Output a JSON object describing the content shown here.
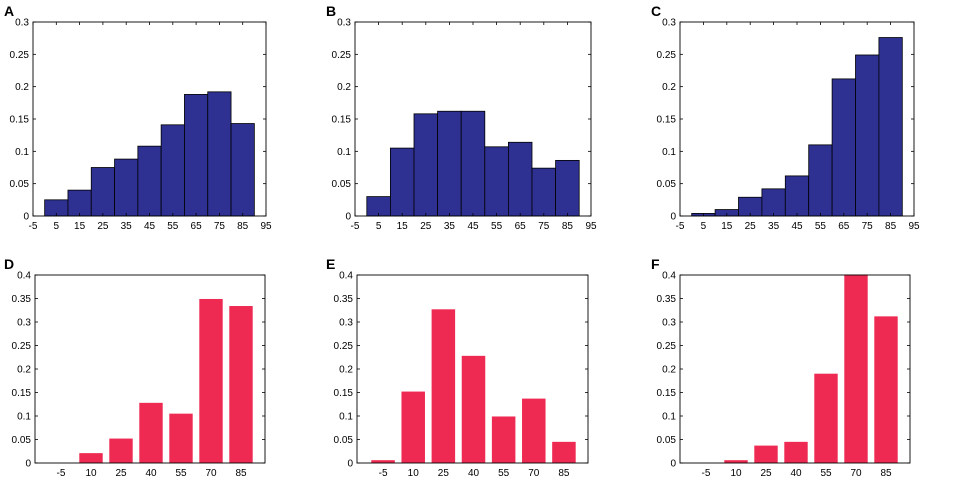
{
  "colors": {
    "histogram_fill": "#2e3192",
    "bar_fill": "#ee2a52",
    "axis": "#000000"
  },
  "chart_data": [
    {
      "panel_label": "A",
      "type": "bar",
      "layout": "histogram",
      "x_range": [
        -5,
        95
      ],
      "edges": [
        0,
        10,
        20,
        30,
        40,
        50,
        60,
        70,
        80,
        90
      ],
      "values": [
        0.025,
        0.04,
        0.075,
        0.088,
        0.108,
        0.141,
        0.188,
        0.192,
        0.143
      ],
      "xticks": [
        -5,
        5,
        15,
        25,
        35,
        45,
        55,
        65,
        75,
        85,
        95
      ],
      "ylim": [
        0,
        0.3
      ],
      "yticks": [
        "0",
        "0.05",
        "0.1",
        "0.15",
        "0.2",
        "0.25",
        "0.3"
      ],
      "color": "#2e3192",
      "title": "",
      "xlabel": "",
      "ylabel": ""
    },
    {
      "panel_label": "B",
      "type": "bar",
      "layout": "histogram",
      "x_range": [
        -5,
        95
      ],
      "edges": [
        0,
        10,
        20,
        30,
        40,
        50,
        60,
        70,
        80,
        90
      ],
      "values": [
        0.03,
        0.105,
        0.158,
        0.162,
        0.162,
        0.107,
        0.114,
        0.074,
        0.086
      ],
      "xticks": [
        -5,
        5,
        15,
        25,
        35,
        45,
        55,
        65,
        75,
        85,
        95
      ],
      "ylim": [
        0,
        0.3
      ],
      "yticks": [
        "0",
        "0.05",
        "0.1",
        "0.15",
        "0.2",
        "0.25",
        "0.3"
      ],
      "color": "#2e3192",
      "title": "",
      "xlabel": "",
      "ylabel": ""
    },
    {
      "panel_label": "C",
      "type": "bar",
      "layout": "histogram",
      "x_range": [
        -5,
        95
      ],
      "edges": [
        0,
        10,
        20,
        30,
        40,
        50,
        60,
        70,
        80,
        90
      ],
      "values": [
        0.004,
        0.01,
        0.029,
        0.042,
        0.062,
        0.11,
        0.212,
        0.249,
        0.276
      ],
      "xticks": [
        -5,
        5,
        15,
        25,
        35,
        45,
        55,
        65,
        75,
        85,
        95
      ],
      "ylim": [
        0,
        0.3
      ],
      "yticks": [
        "0",
        "0.05",
        "0.1",
        "0.15",
        "0.2",
        "0.25",
        "0.3"
      ],
      "color": "#2e3192",
      "title": "",
      "xlabel": "",
      "ylabel": ""
    },
    {
      "panel_label": "D",
      "type": "bar",
      "layout": "separated",
      "categories": [
        "-5",
        "10",
        "25",
        "40",
        "55",
        "70",
        "85"
      ],
      "values": [
        0,
        0.021,
        0.052,
        0.128,
        0.105,
        0.349,
        0.334
      ],
      "ylim": [
        0,
        0.4
      ],
      "yticks": [
        "0",
        "0.05",
        "0.1",
        "0.15",
        "0.2",
        "0.25",
        "0.3",
        "0.35",
        "0.4"
      ],
      "color": "#ee2a52",
      "title": "",
      "xlabel": "",
      "ylabel": ""
    },
    {
      "panel_label": "E",
      "type": "bar",
      "layout": "separated",
      "categories": [
        "-5",
        "10",
        "25",
        "40",
        "55",
        "70",
        "85"
      ],
      "values": [
        0.006,
        0.152,
        0.327,
        0.228,
        0.099,
        0.137,
        0.045
      ],
      "ylim": [
        0,
        0.4
      ],
      "yticks": [
        "0",
        "0.05",
        "0.1",
        "0.15",
        "0.2",
        "0.25",
        "0.3",
        "0.35",
        "0.4"
      ],
      "color": "#ee2a52",
      "title": "",
      "xlabel": "",
      "ylabel": ""
    },
    {
      "panel_label": "F",
      "type": "bar",
      "layout": "separated",
      "categories": [
        "-5",
        "10",
        "25",
        "40",
        "55",
        "70",
        "85"
      ],
      "values": [
        0,
        0.006,
        0.037,
        0.045,
        0.19,
        0.401,
        0.312
      ],
      "ylim": [
        0,
        0.4
      ],
      "yticks": [
        "0",
        "0.05",
        "0.1",
        "0.15",
        "0.2",
        "0.25",
        "0.3",
        "0.35",
        "0.4"
      ],
      "color": "#ee2a52",
      "title": "",
      "xlabel": "",
      "ylabel": ""
    }
  ]
}
